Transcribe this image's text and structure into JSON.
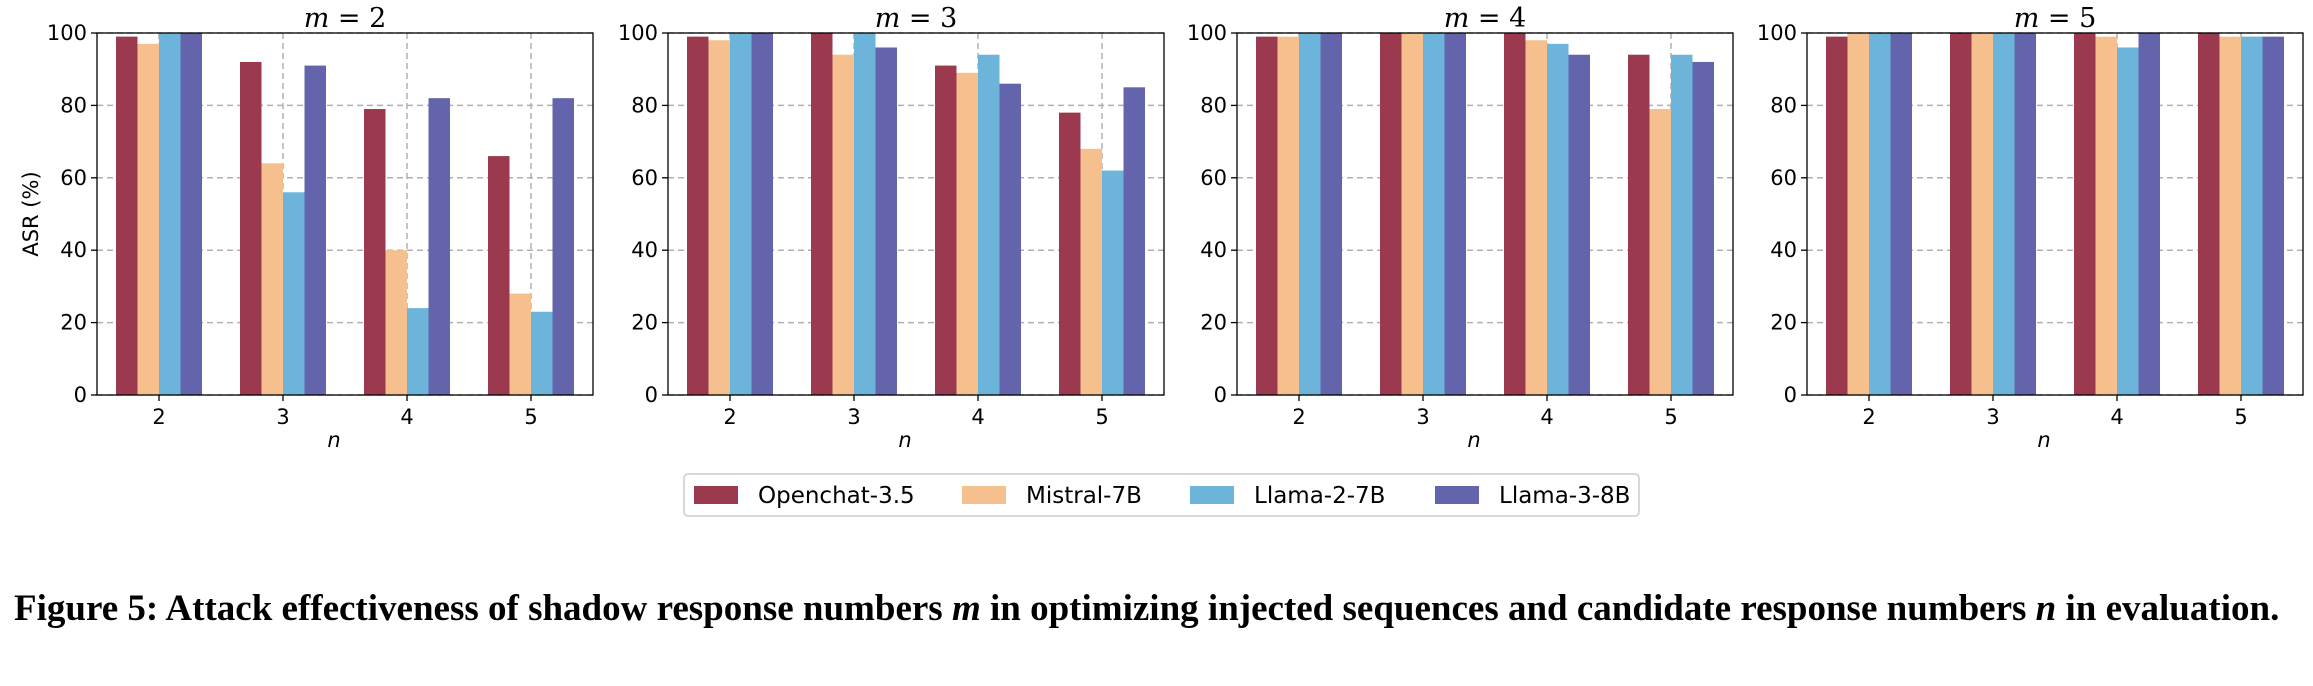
{
  "chart_data": [
    {
      "type": "bar",
      "title": "m = 2",
      "title_var": "m",
      "title_val": "2",
      "xlabel": "n",
      "ylabel": "ASR (%)",
      "ylim": [
        0,
        100
      ],
      "yticks": [
        "0",
        "20",
        "40",
        "60",
        "80",
        "100"
      ],
      "categories": [
        "2",
        "3",
        "4",
        "5"
      ],
      "series": [
        {
          "name": "Openchat-3.5",
          "values": [
            99,
            92,
            79,
            66
          ]
        },
        {
          "name": "Mistral-7B",
          "values": [
            97,
            64,
            40,
            28
          ]
        },
        {
          "name": "Llama-2-7B",
          "values": [
            100,
            56,
            24,
            23
          ]
        },
        {
          "name": "Llama-3-8B",
          "values": [
            100,
            91,
            82,
            82
          ]
        }
      ]
    },
    {
      "type": "bar",
      "title": "m = 3",
      "title_var": "m",
      "title_val": "3",
      "xlabel": "n",
      "ylabel": "",
      "ylim": [
        0,
        100
      ],
      "yticks": [
        "0",
        "20",
        "40",
        "60",
        "80",
        "100"
      ],
      "categories": [
        "2",
        "3",
        "4",
        "5"
      ],
      "series": [
        {
          "name": "Openchat-3.5",
          "values": [
            99,
            100,
            91,
            78
          ]
        },
        {
          "name": "Mistral-7B",
          "values": [
            98,
            94,
            89,
            68
          ]
        },
        {
          "name": "Llama-2-7B",
          "values": [
            100,
            100,
            94,
            62
          ]
        },
        {
          "name": "Llama-3-8B",
          "values": [
            100,
            96,
            86,
            85
          ]
        }
      ]
    },
    {
      "type": "bar",
      "title": "m = 4",
      "title_var": "m",
      "title_val": "4",
      "xlabel": "n",
      "ylabel": "",
      "ylim": [
        0,
        100
      ],
      "yticks": [
        "0",
        "20",
        "40",
        "60",
        "80",
        "100"
      ],
      "categories": [
        "2",
        "3",
        "4",
        "5"
      ],
      "series": [
        {
          "name": "Openchat-3.5",
          "values": [
            99,
            100,
            100,
            94
          ]
        },
        {
          "name": "Mistral-7B",
          "values": [
            99,
            100,
            98,
            79
          ]
        },
        {
          "name": "Llama-2-7B",
          "values": [
            100,
            100,
            97,
            94
          ]
        },
        {
          "name": "Llama-3-8B",
          "values": [
            100,
            100,
            94,
            92
          ]
        }
      ]
    },
    {
      "type": "bar",
      "title": "m = 5",
      "title_var": "m",
      "title_val": "5",
      "xlabel": "n",
      "ylabel": "",
      "ylim": [
        0,
        100
      ],
      "yticks": [
        "0",
        "20",
        "40",
        "60",
        "80",
        "100"
      ],
      "categories": [
        "2",
        "3",
        "4",
        "5"
      ],
      "series": [
        {
          "name": "Openchat-3.5",
          "values": [
            99,
            100,
            100,
            100
          ]
        },
        {
          "name": "Mistral-7B",
          "values": [
            100,
            100,
            99,
            99
          ]
        },
        {
          "name": "Llama-2-7B",
          "values": [
            100,
            100,
            96,
            99
          ]
        },
        {
          "name": "Llama-3-8B",
          "values": [
            100,
            100,
            100,
            99
          ]
        }
      ]
    }
  ],
  "legend": {
    "placement": "bottom-center",
    "items": [
      {
        "name": "Openchat-3.5",
        "color": "#9b3a4f"
      },
      {
        "name": "Mistral-7B",
        "color": "#f5c08e"
      },
      {
        "name": "Llama-2-7B",
        "color": "#6cb4d9"
      },
      {
        "name": "Llama-3-8B",
        "color": "#6464ad"
      }
    ]
  },
  "caption": {
    "prefix": "Figure 5: Attack effectiveness of shadow response numbers ",
    "m_var": "m",
    "middle": " in optimizing injected sequences and candidate response numbers ",
    "n_var": "n",
    "suffix": " in evaluation."
  }
}
